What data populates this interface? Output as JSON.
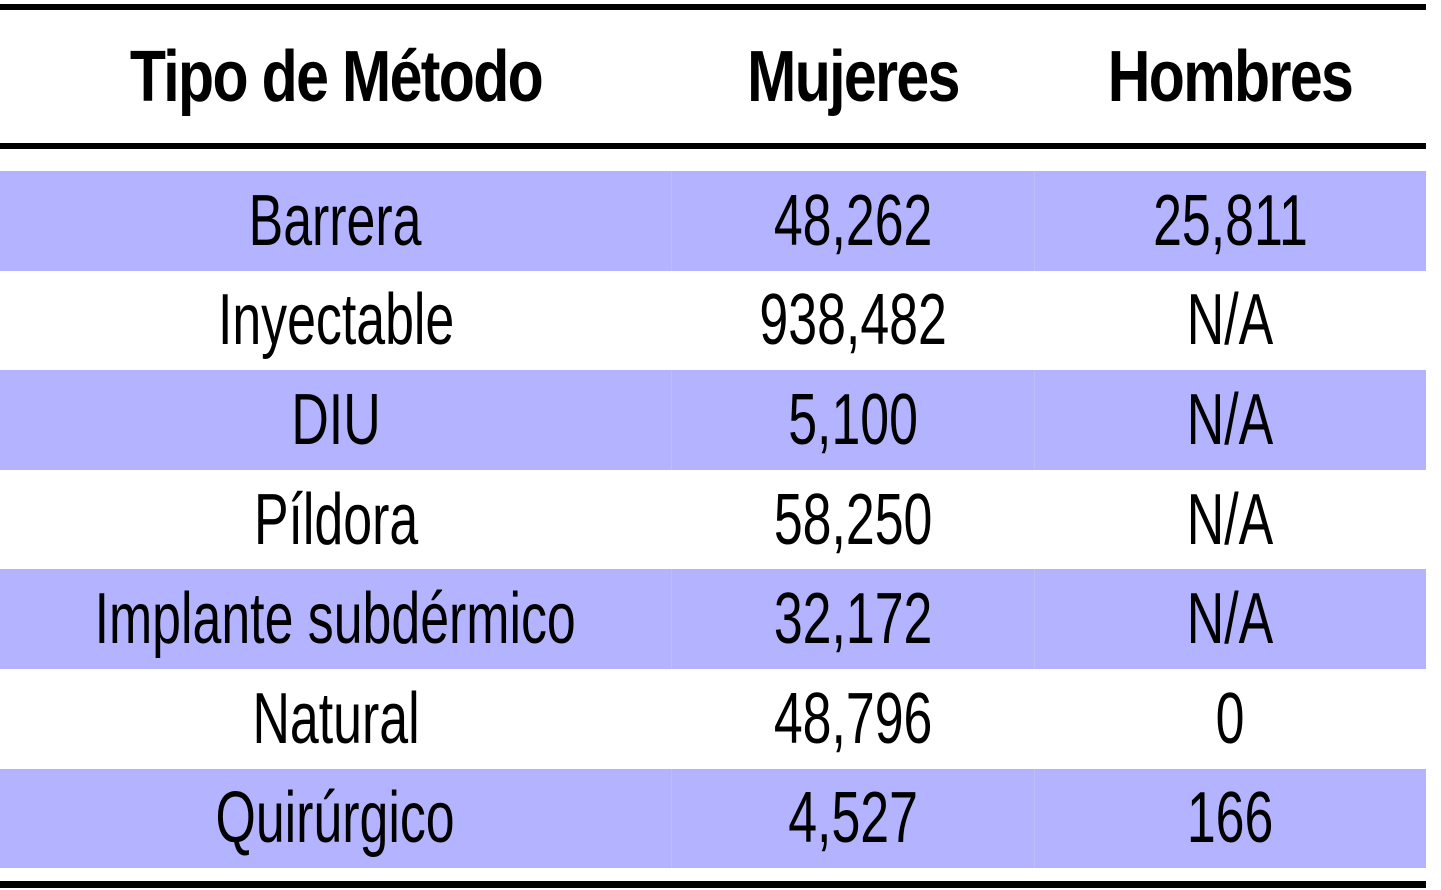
{
  "chart_data": {
    "type": "table",
    "columns": [
      "Tipo de Método",
      "Mujeres",
      "Hombres"
    ],
    "rows": [
      [
        "Barrera",
        "48,262",
        "25,811"
      ],
      [
        "Inyectable",
        "938,482",
        "N/A"
      ],
      [
        "DIU",
        "5,100",
        "N/A"
      ],
      [
        "Píldora",
        "58,250",
        "N/A"
      ],
      [
        "Implante subdérmico",
        "32,172",
        "N/A"
      ],
      [
        "Natural",
        "48,796",
        "0"
      ],
      [
        "Quirúrgico",
        "4,527",
        "166"
      ]
    ],
    "row_shading_color": "#b3b3ff",
    "row_shading": "alternating, first body row shaded"
  }
}
